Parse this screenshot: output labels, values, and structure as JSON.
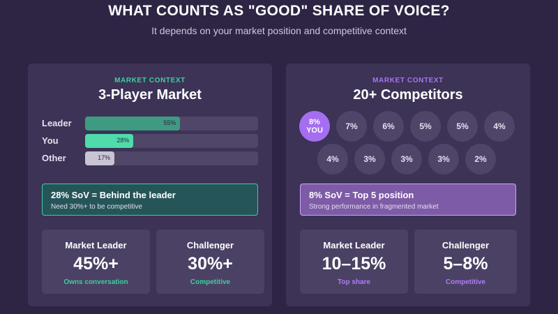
{
  "header": {
    "title": "WHAT COUNTS AS \"GOOD\" SHARE OF VOICE?",
    "subtitle": "It depends on your market position and competitive context"
  },
  "colors": {
    "background": "#2e2444",
    "panel": "#3c3356",
    "teal_accent": "#3ecf9e",
    "purple_accent": "#a973f2",
    "leader_bar": "#3f9a82",
    "you_bar": "#4fdcaa",
    "other_bar": "#c9c4d3",
    "you_bubble": "#a56ef0"
  },
  "left_panel": {
    "context_label": "MARKET CONTEXT",
    "title": "3-Player Market",
    "callout": {
      "headline": "28% SoV = Behind the leader",
      "detail": "Need 30%+ to be competitive"
    },
    "stats": [
      {
        "label": "Market Leader",
        "value": "45%+",
        "note": "Owns conversation"
      },
      {
        "label": "Challenger",
        "value": "30%+",
        "note": "Competitive"
      }
    ]
  },
  "right_panel": {
    "context_label": "MARKET CONTEXT",
    "title": "20+ Competitors",
    "callout": {
      "headline": "8% SoV = Top 5 position",
      "detail": "Strong performance in fragmented market"
    },
    "stats": [
      {
        "label": "Market Leader",
        "value": "10–15%",
        "note": "Top share"
      },
      {
        "label": "Challenger",
        "value": "5–8%",
        "note": "Competitive"
      }
    ]
  },
  "chart_data": [
    {
      "type": "bar",
      "orientation": "horizontal",
      "categories": [
        "Leader",
        "You",
        "Other"
      ],
      "values": [
        55,
        28,
        17
      ],
      "value_labels": [
        "55%",
        "28%",
        "17%"
      ],
      "xlim": [
        0,
        100
      ]
    },
    {
      "type": "bubble",
      "rows": [
        [
          {
            "value": 8,
            "label": "8%",
            "sub_label": "YOU",
            "highlight": true
          },
          {
            "value": 7,
            "label": "7%"
          },
          {
            "value": 6,
            "label": "6%"
          },
          {
            "value": 5,
            "label": "5%"
          },
          {
            "value": 5,
            "label": "5%"
          },
          {
            "value": 4,
            "label": "4%"
          }
        ],
        [
          {
            "value": 4,
            "label": "4%"
          },
          {
            "value": 3,
            "label": "3%"
          },
          {
            "value": 3,
            "label": "3%"
          },
          {
            "value": 3,
            "label": "3%"
          },
          {
            "value": 2,
            "label": "2%"
          }
        ]
      ]
    }
  ]
}
